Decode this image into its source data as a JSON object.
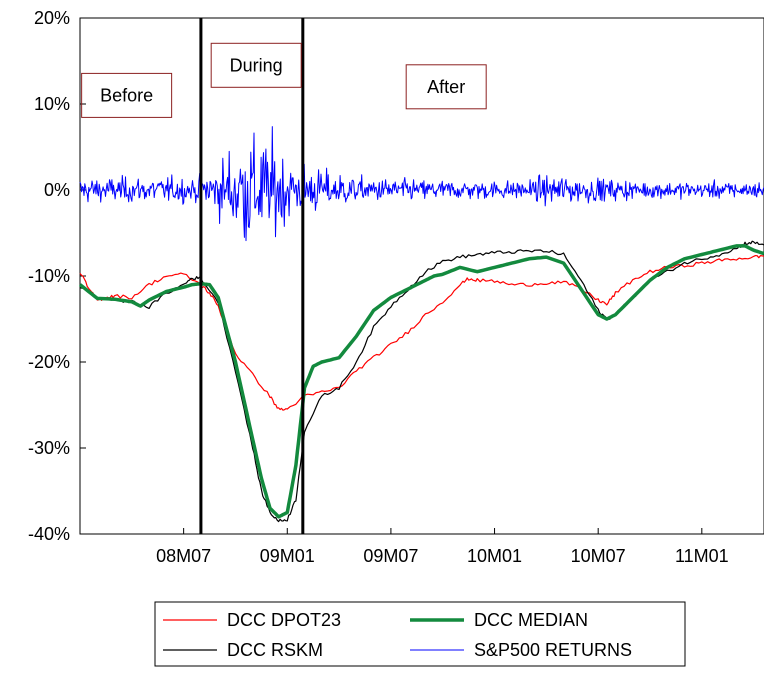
{
  "chart_data": {
    "type": "line",
    "title": "",
    "xlabel": "",
    "ylabel": "",
    "ylim": [
      -40,
      20
    ],
    "y_ticks": [
      20,
      10,
      0,
      -10,
      -20,
      -30,
      -40
    ],
    "y_tick_labels": [
      "20%",
      "10%",
      "0%",
      "-10%",
      "-20%",
      "-30%",
      "-40%"
    ],
    "x_tick_labels": [
      "08M07",
      "09M01",
      "09M07",
      "10M01",
      "10M07",
      "11M01"
    ],
    "x_tick_months": [
      6,
      12,
      18,
      24,
      30,
      36
    ],
    "x_range_months": [
      0,
      39.6
    ],
    "x_start_label": "08M01",
    "grid": false,
    "legend_position": "bottom",
    "vertical_lines_months": [
      7.0,
      12.9
    ],
    "regions": [
      {
        "label": "Before",
        "x_month": 2.7,
        "y": 11
      },
      {
        "label": "During",
        "x_month": 10.2,
        "y": 14.5
      },
      {
        "label": "After",
        "x_month": 21.2,
        "y": 12
      }
    ],
    "series": [
      {
        "name": "DCC DPOT23",
        "color": "#ff0000",
        "width": 1.2,
        "x": [
          0,
          0.5,
          1,
          1.5,
          2,
          3,
          4,
          5,
          6,
          7,
          7.5,
          8,
          9,
          10,
          11,
          11.5,
          12,
          13,
          14,
          15,
          16,
          17,
          18,
          19,
          20,
          21,
          22,
          22.5,
          23,
          24,
          25,
          26,
          27,
          28,
          29,
          30,
          30.5,
          31,
          32,
          33,
          34,
          35,
          36,
          37,
          38,
          39,
          39.6
        ],
        "y": [
          -9.5,
          -11.5,
          -12.8,
          -12.5,
          -12.3,
          -12.5,
          -11,
          -10,
          -9.8,
          -11,
          -12,
          -13.5,
          -19,
          -21.5,
          -24,
          -25.5,
          -25.5,
          -24,
          -23.5,
          -23,
          -21,
          -19.5,
          -18,
          -16.5,
          -14.5,
          -13,
          -11,
          -10.3,
          -10.5,
          -10.6,
          -11,
          -11,
          -10.8,
          -10.7,
          -11.5,
          -12.8,
          -13.3,
          -12,
          -10.5,
          -9.5,
          -9,
          -8.8,
          -8.5,
          -8.2,
          -8,
          -7.8,
          -7.7
        ]
      },
      {
        "name": "DCC RSKM",
        "color": "#000000",
        "width": 1.2,
        "x": [
          0,
          1,
          2,
          3,
          4,
          5,
          6,
          6.5,
          7,
          8,
          9,
          10,
          10.5,
          11,
          11.5,
          12,
          12.5,
          13,
          14,
          15,
          16,
          17,
          18,
          19,
          20,
          21,
          22,
          23,
          24,
          25,
          26,
          27,
          28,
          29,
          30,
          30.5,
          31,
          32,
          33,
          34,
          35,
          36,
          37,
          38,
          38.5,
          39,
          39.6
        ],
        "y": [
          -11.2,
          -12.5,
          -12.8,
          -13,
          -13.6,
          -12,
          -11,
          -10.2,
          -10.3,
          -13,
          -21,
          -30,
          -35,
          -37.5,
          -38.5,
          -38.3,
          -36,
          -28,
          -24,
          -23,
          -20,
          -16,
          -13.5,
          -11.5,
          -9.5,
          -8.3,
          -7.8,
          -7.5,
          -7.3,
          -7.2,
          -7.1,
          -7.1,
          -7.5,
          -10.5,
          -14,
          -15,
          -14.5,
          -12.5,
          -10.5,
          -9.5,
          -8.5,
          -8,
          -7.5,
          -6.8,
          -6.2,
          -6.1,
          -6.4
        ]
      },
      {
        "name": "DCC MEDIAN",
        "color": "#138a3e",
        "width": 3.5,
        "x": [
          0,
          1,
          2,
          3,
          3.5,
          4,
          5,
          6,
          6.5,
          7,
          7.5,
          8,
          9,
          10,
          10.5,
          11,
          11.5,
          12,
          12.5,
          13,
          13.5,
          14,
          15,
          16,
          17,
          18,
          19,
          20,
          20.5,
          21,
          22,
          23,
          24,
          25,
          26,
          27,
          28,
          29,
          30,
          30.5,
          31,
          32,
          33,
          34,
          35,
          36,
          37,
          38,
          38.5,
          39,
          39.6
        ],
        "y": [
          -11,
          -12.6,
          -12.7,
          -13,
          -13.5,
          -12.8,
          -11.8,
          -11.3,
          -11,
          -10.9,
          -11,
          -12.5,
          -20,
          -29,
          -33.5,
          -37,
          -38,
          -37.5,
          -32,
          -23,
          -20.5,
          -20,
          -19.5,
          -17,
          -14,
          -12.5,
          -11.5,
          -10.5,
          -10,
          -9.8,
          -9,
          -9.5,
          -9,
          -8.5,
          -8,
          -7.8,
          -8.5,
          -11.5,
          -14.5,
          -15,
          -14.5,
          -12.5,
          -10.5,
          -9,
          -8,
          -7.5,
          -7,
          -6.5,
          -6.5,
          -7,
          -7.4
        ]
      },
      {
        "name": "S&P500 RETURNS",
        "color": "#0000ff",
        "width": 1,
        "x_start_month": 0,
        "x_step_month": 0.0462,
        "volatility_by_month": [
          [
            0,
            1.5
          ],
          [
            7,
            1.5
          ],
          [
            8,
            3
          ],
          [
            9,
            6
          ],
          [
            10,
            7
          ],
          [
            11,
            6
          ],
          [
            12,
            4
          ],
          [
            13,
            3
          ],
          [
            14,
            2.5
          ],
          [
            16,
            1.5
          ],
          [
            20,
            1.2
          ],
          [
            25,
            1.1
          ],
          [
            28,
            1.8
          ],
          [
            30,
            1.4
          ],
          [
            33,
            1
          ],
          [
            39.6,
            1
          ]
        ]
      }
    ],
    "legend": {
      "rows": [
        [
          "DCC DPOT23",
          "DCC MEDIAN"
        ],
        [
          "DCC RSKM",
          "S&P500 RETURNS"
        ]
      ]
    }
  }
}
